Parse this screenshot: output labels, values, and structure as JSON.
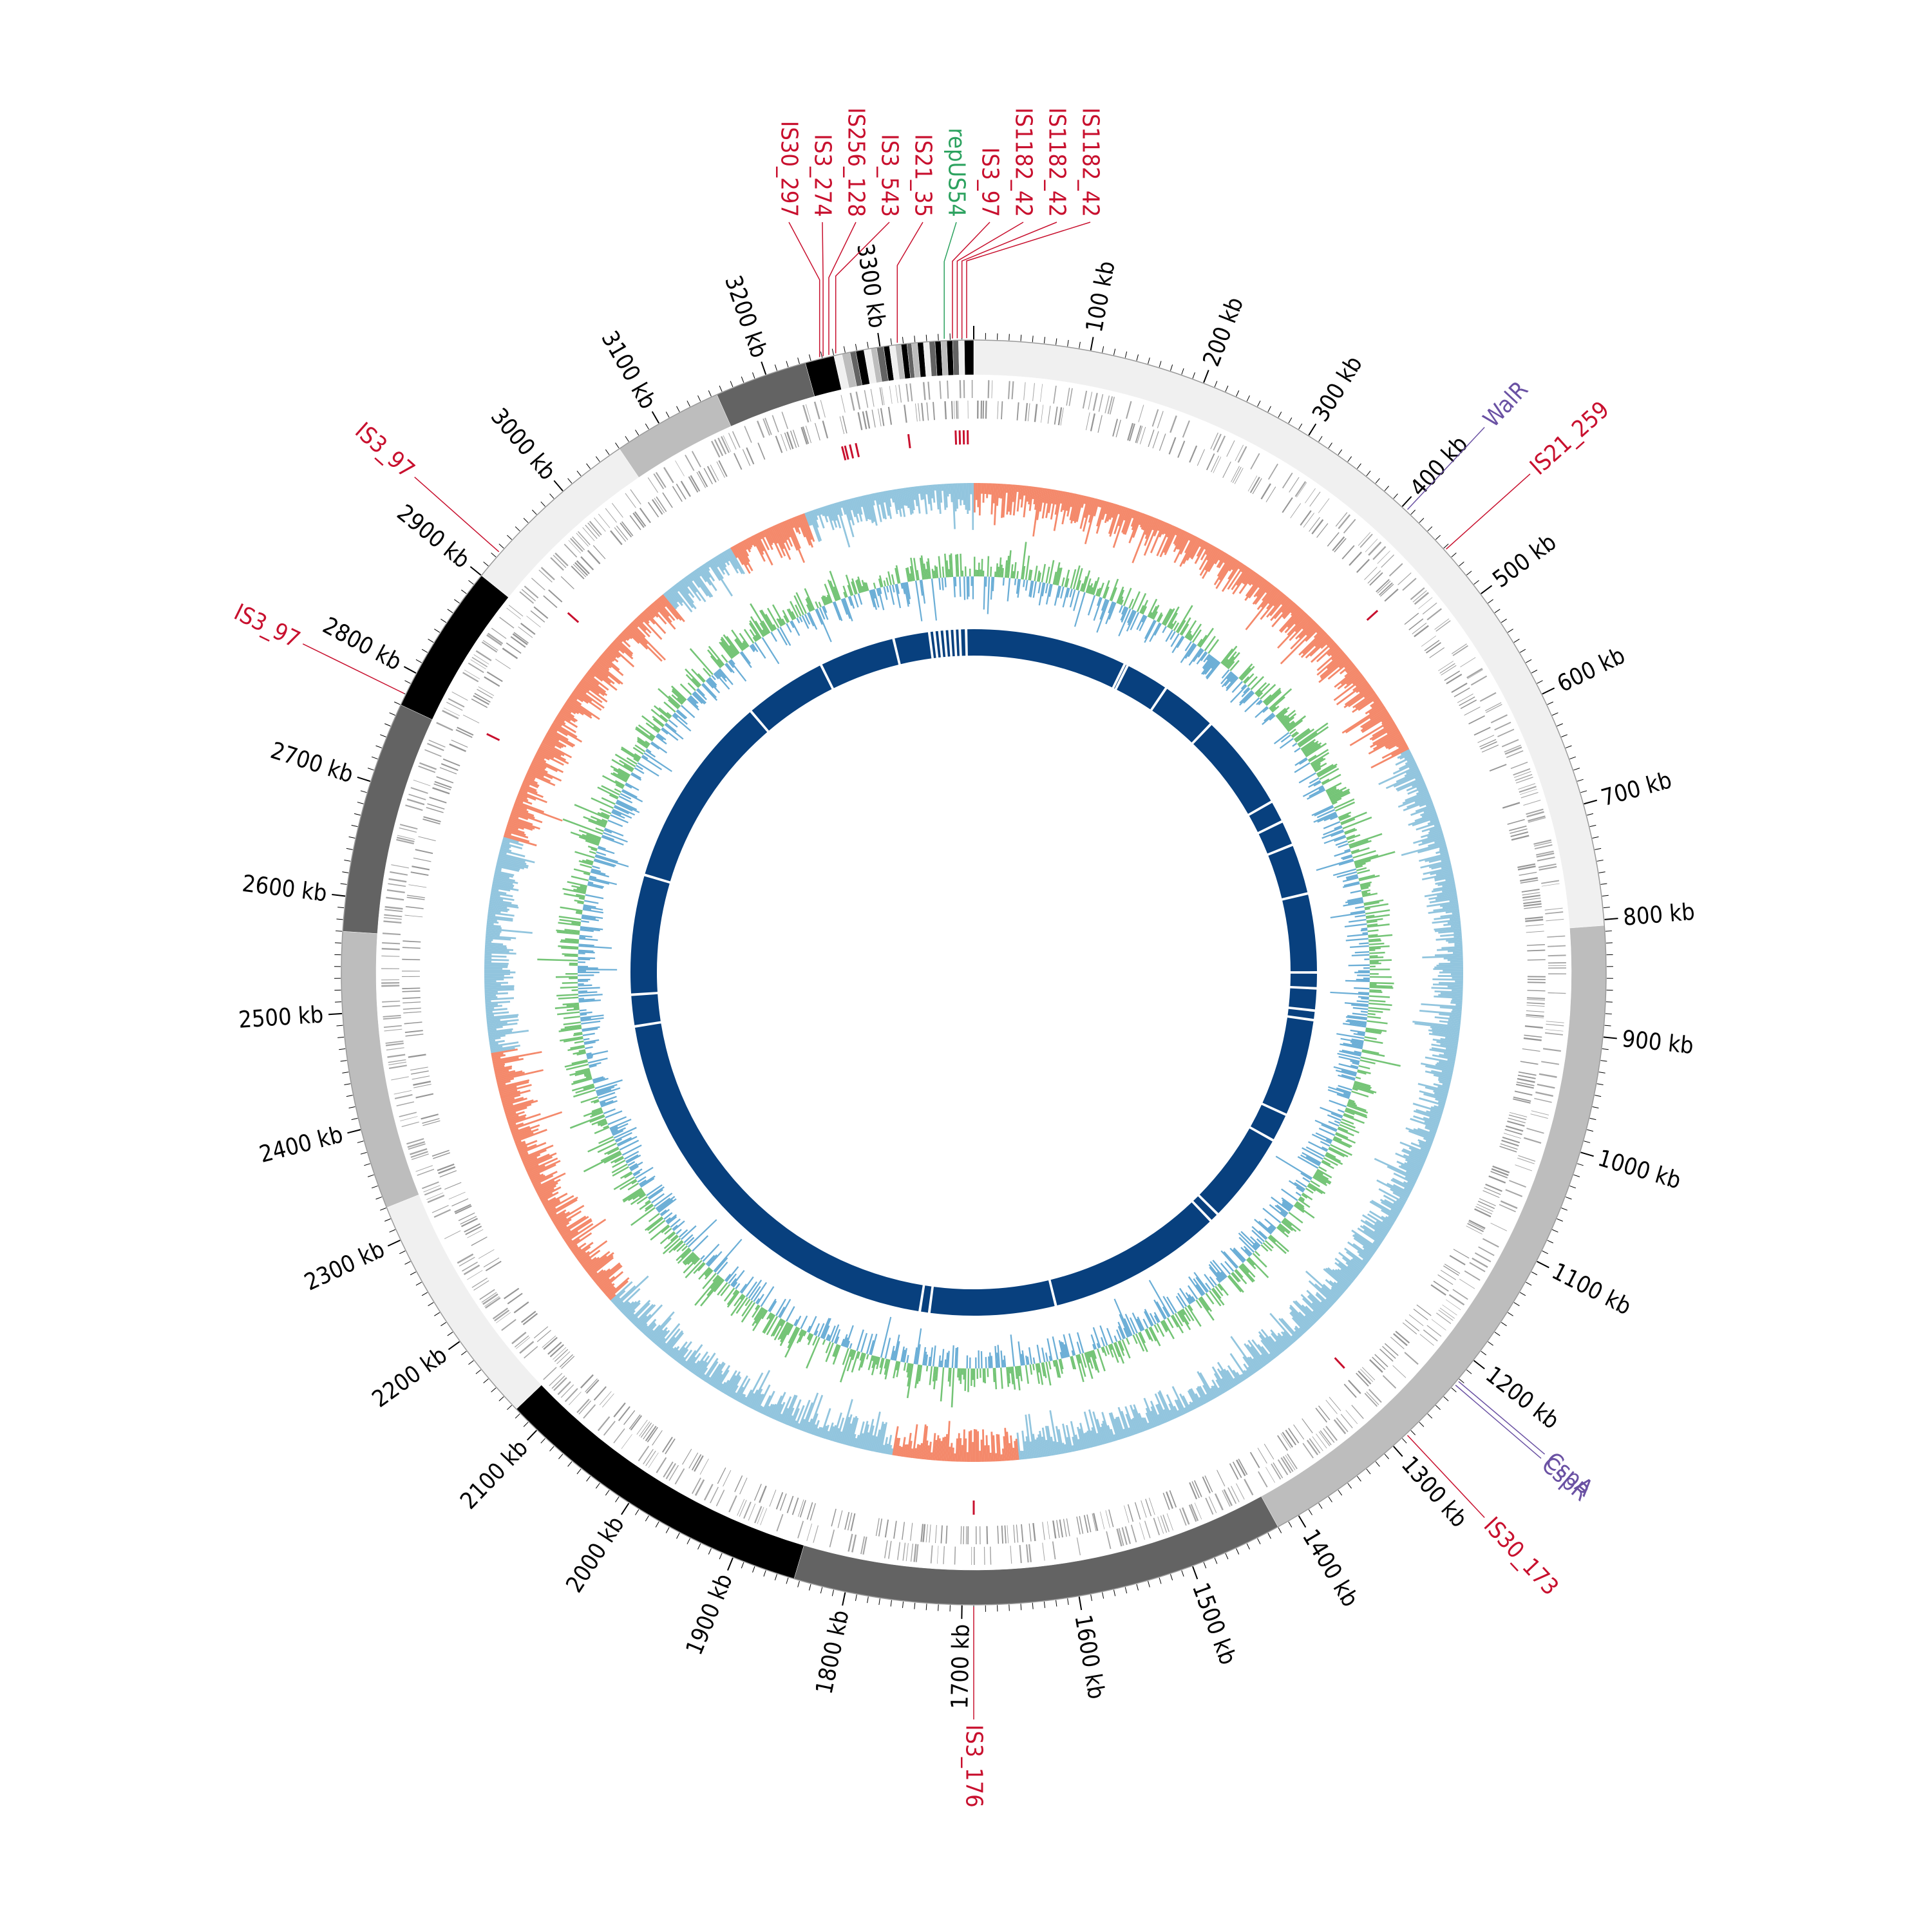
{
  "genome_map": {
    "genome_length_kb": 3380,
    "start_offset_kb": 0,
    "tick_labels": [
      {
        "kb": 100,
        "label": "100 kb"
      },
      {
        "kb": 200,
        "label": "200 kb"
      },
      {
        "kb": 300,
        "label": "300 kb"
      },
      {
        "kb": 400,
        "label": "400 kb"
      },
      {
        "kb": 500,
        "label": "500 kb"
      },
      {
        "kb": 600,
        "label": "600 kb"
      },
      {
        "kb": 700,
        "label": "700 kb"
      },
      {
        "kb": 800,
        "label": "800 kb"
      },
      {
        "kb": 900,
        "label": "900 kb"
      },
      {
        "kb": 1000,
        "label": "1000 kb"
      },
      {
        "kb": 1100,
        "label": "1100 kb"
      },
      {
        "kb": 1200,
        "label": "1200 kb"
      },
      {
        "kb": 1300,
        "label": "1300 kb"
      },
      {
        "kb": 1400,
        "label": "1400 kb"
      },
      {
        "kb": 1500,
        "label": "1500 kb"
      },
      {
        "kb": 1600,
        "label": "1600 kb"
      },
      {
        "kb": 1700,
        "label": "1700 kb"
      },
      {
        "kb": 1800,
        "label": "1800 kb"
      },
      {
        "kb": 1900,
        "label": "1900 kb"
      },
      {
        "kb": 2000,
        "label": "2000 kb"
      },
      {
        "kb": 2100,
        "label": "2100 kb"
      },
      {
        "kb": 2200,
        "label": "2200 kb"
      },
      {
        "kb": 2300,
        "label": "2300 kb"
      },
      {
        "kb": 2400,
        "label": "2400 kb"
      },
      {
        "kb": 2500,
        "label": "2500 kb"
      },
      {
        "kb": 2600,
        "label": "2600 kb"
      },
      {
        "kb": 2700,
        "label": "2700 kb"
      },
      {
        "kb": 2800,
        "label": "2800 kb"
      },
      {
        "kb": 2900,
        "label": "2900 kb"
      },
      {
        "kb": 3000,
        "label": "3000 kb"
      },
      {
        "kb": 3100,
        "label": "3100 kb"
      },
      {
        "kb": 3200,
        "label": "3200 kb"
      },
      {
        "kb": 3300,
        "label": "3300 kb"
      }
    ],
    "contig_blocks": [
      {
        "start": 0,
        "end": 805,
        "color": "#f0f0f0"
      },
      {
        "start": 805,
        "end": 1420,
        "color": "#bdbdbd"
      },
      {
        "start": 1420,
        "end": 1845,
        "color": "#636363"
      },
      {
        "start": 1845,
        "end": 2125,
        "color": "#000000"
      },
      {
        "start": 2125,
        "end": 2330,
        "color": "#f0f0f0"
      },
      {
        "start": 2330,
        "end": 2570,
        "color": "#bdbdbd"
      },
      {
        "start": 2570,
        "end": 2770,
        "color": "#636363"
      },
      {
        "start": 2770,
        "end": 2900,
        "color": "#000000"
      },
      {
        "start": 2900,
        "end": 3060,
        "color": "#f0f0f0"
      },
      {
        "start": 3060,
        "end": 3155,
        "color": "#bdbdbd"
      },
      {
        "start": 3155,
        "end": 3235,
        "color": "#636363"
      },
      {
        "start": 3235,
        "end": 3260,
        "color": "#000000"
      },
      {
        "start": 3260,
        "end": 3267,
        "color": "#f0f0f0"
      },
      {
        "start": 3267,
        "end": 3274,
        "color": "#bdbdbd"
      },
      {
        "start": 3274,
        "end": 3279,
        "color": "#636363"
      },
      {
        "start": 3279,
        "end": 3286,
        "color": "#000000"
      },
      {
        "start": 3286,
        "end": 3292,
        "color": "#f0f0f0"
      },
      {
        "start": 3292,
        "end": 3297,
        "color": "#bdbdbd"
      },
      {
        "start": 3297,
        "end": 3303,
        "color": "#636363"
      },
      {
        "start": 3303,
        "end": 3308,
        "color": "#000000"
      },
      {
        "start": 3308,
        "end": 3313,
        "color": "#f0f0f0"
      },
      {
        "start": 3313,
        "end": 3318,
        "color": "#bdbdbd"
      },
      {
        "start": 3318,
        "end": 3323,
        "color": "#000000"
      },
      {
        "start": 3323,
        "end": 3327,
        "color": "#636363"
      },
      {
        "start": 3327,
        "end": 3332,
        "color": "#bdbdbd"
      },
      {
        "start": 3332,
        "end": 3337,
        "color": "#000000"
      },
      {
        "start": 3337,
        "end": 3342,
        "color": "#f0f0f0"
      },
      {
        "start": 3342,
        "end": 3347,
        "color": "#636363"
      },
      {
        "start": 3347,
        "end": 3352,
        "color": "#000000"
      },
      {
        "start": 3352,
        "end": 3357,
        "color": "#bdbdbd"
      },
      {
        "start": 3357,
        "end": 3362,
        "color": "#000000"
      },
      {
        "start": 3362,
        "end": 3367,
        "color": "#636363"
      },
      {
        "start": 3367,
        "end": 3372,
        "color": "#f0f0f0"
      },
      {
        "start": 3372,
        "end": 3380,
        "color": "#000000"
      }
    ],
    "is_elements": [
      {
        "kb": 452,
        "label": "IS21_259",
        "color": "#c8102e",
        "side": "right"
      },
      {
        "kb": 1285,
        "label": "IS30_173",
        "color": "#c8102e",
        "side": "right"
      },
      {
        "kb": 1690,
        "label": "IS3_176",
        "color": "#c8102e",
        "side": "bottom"
      },
      {
        "kb": 2780,
        "label": "IS3_97",
        "color": "#c8102e",
        "side": "left"
      },
      {
        "kb": 2925,
        "label": "IS3_97",
        "color": "#c8102e",
        "side": "left"
      },
      {
        "kb": 3248,
        "label": "IS30_297",
        "color": "#c8102e",
        "side": "top"
      },
      {
        "kb": 3251,
        "label": "IS3_274",
        "color": "#c8102e",
        "side": "top"
      },
      {
        "kb": 3256,
        "label": "IS256_128",
        "color": "#c8102e",
        "side": "top"
      },
      {
        "kb": 3262,
        "label": "IS3_543",
        "color": "#c8102e",
        "side": "top"
      },
      {
        "kb": 3315,
        "label": "IS21_35",
        "color": "#c8102e",
        "side": "top"
      },
      {
        "kb": 3362,
        "label": "IS3_97",
        "color": "#c8102e",
        "side": "top"
      },
      {
        "kb": 3366,
        "label": "IS1182_42",
        "color": "#c8102e",
        "side": "top"
      },
      {
        "kb": 3370,
        "label": "IS1182_42",
        "color": "#c8102e",
        "side": "top"
      },
      {
        "kb": 3374,
        "label": "IS1182_42",
        "color": "#c8102e",
        "side": "top"
      }
    ],
    "gene_labels": [
      {
        "kb": 3355,
        "label": "repUS54",
        "color": "#2ca25f",
        "side": "top"
      },
      {
        "kb": 405,
        "label": "WalR",
        "color": "#6a51a3",
        "side": "right"
      },
      {
        "kb": 1222,
        "label": "CspA",
        "color": "#6a51a3",
        "side": "right"
      },
      {
        "kb": 1226,
        "label": "CspR",
        "color": "#6a51a3",
        "side": "right"
      }
    ],
    "gc_skew_segments": [
      {
        "start": 0,
        "end": 590,
        "sign": "positive"
      },
      {
        "start": 590,
        "end": 1640,
        "sign": "negative"
      },
      {
        "start": 1640,
        "end": 1780,
        "sign": "positive"
      },
      {
        "start": 1780,
        "end": 2140,
        "sign": "negative"
      },
      {
        "start": 2140,
        "end": 2445,
        "sign": "positive"
      },
      {
        "start": 2445,
        "end": 2685,
        "sign": "negative"
      },
      {
        "start": 2685,
        "end": 3010,
        "sign": "positive"
      },
      {
        "start": 3010,
        "end": 3100,
        "sign": "negative"
      },
      {
        "start": 3100,
        "end": 3190,
        "sign": "positive"
      },
      {
        "start": 3190,
        "end": 3380,
        "sign": "negative"
      }
    ],
    "synteny_gaps_kb": [
      3253,
      3310,
      3318,
      3326,
      3334,
      3342,
      3350,
      3358,
      3368,
      3132,
      3000,
      2690,
      2500,
      2450,
      1760,
      1775,
      1560,
      1265,
      1280,
      1120,
      1075,
      870,
      905,
      920,
      845,
      720,
      640,
      600,
      565,
      250,
      245,
      320,
      410
    ],
    "colors": {
      "gc_skew_positive": "#f4896b",
      "gc_skew_negative": "#92c5de",
      "gc_content_above": "#74c476",
      "gc_content_below": "#6baed6",
      "synteny": "#08407e",
      "gene_forward": "#a6a6a6",
      "gene_reverse": "#969696",
      "is_mark": "#c8102e"
    }
  }
}
